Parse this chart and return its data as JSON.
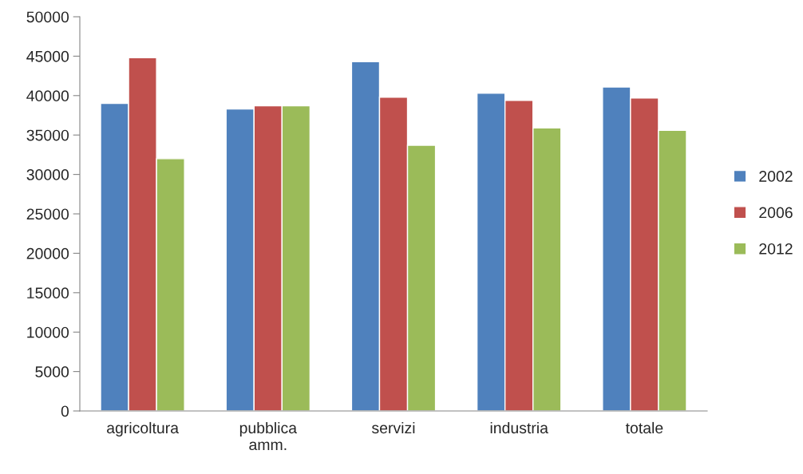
{
  "chart_data": {
    "type": "bar",
    "categories": [
      "agricoltura",
      "pubblica\namm.",
      "servizi",
      "industria",
      "totale"
    ],
    "series": [
      {
        "name": "2002",
        "color": "#4f81bd",
        "values": [
          39000,
          38300,
          44300,
          40300,
          41100
        ]
      },
      {
        "name": "2006",
        "color": "#c0504d",
        "values": [
          44800,
          38700,
          39800,
          39400,
          39700
        ]
      },
      {
        "name": "2012",
        "color": "#9bbb59",
        "values": [
          32000,
          38700,
          33700,
          35900,
          35600
        ]
      }
    ],
    "ylim": [
      0,
      50000
    ],
    "yticks": [
      0,
      5000,
      10000,
      15000,
      20000,
      25000,
      30000,
      35000,
      40000,
      45000,
      50000
    ],
    "grid": false,
    "legend": "right"
  }
}
